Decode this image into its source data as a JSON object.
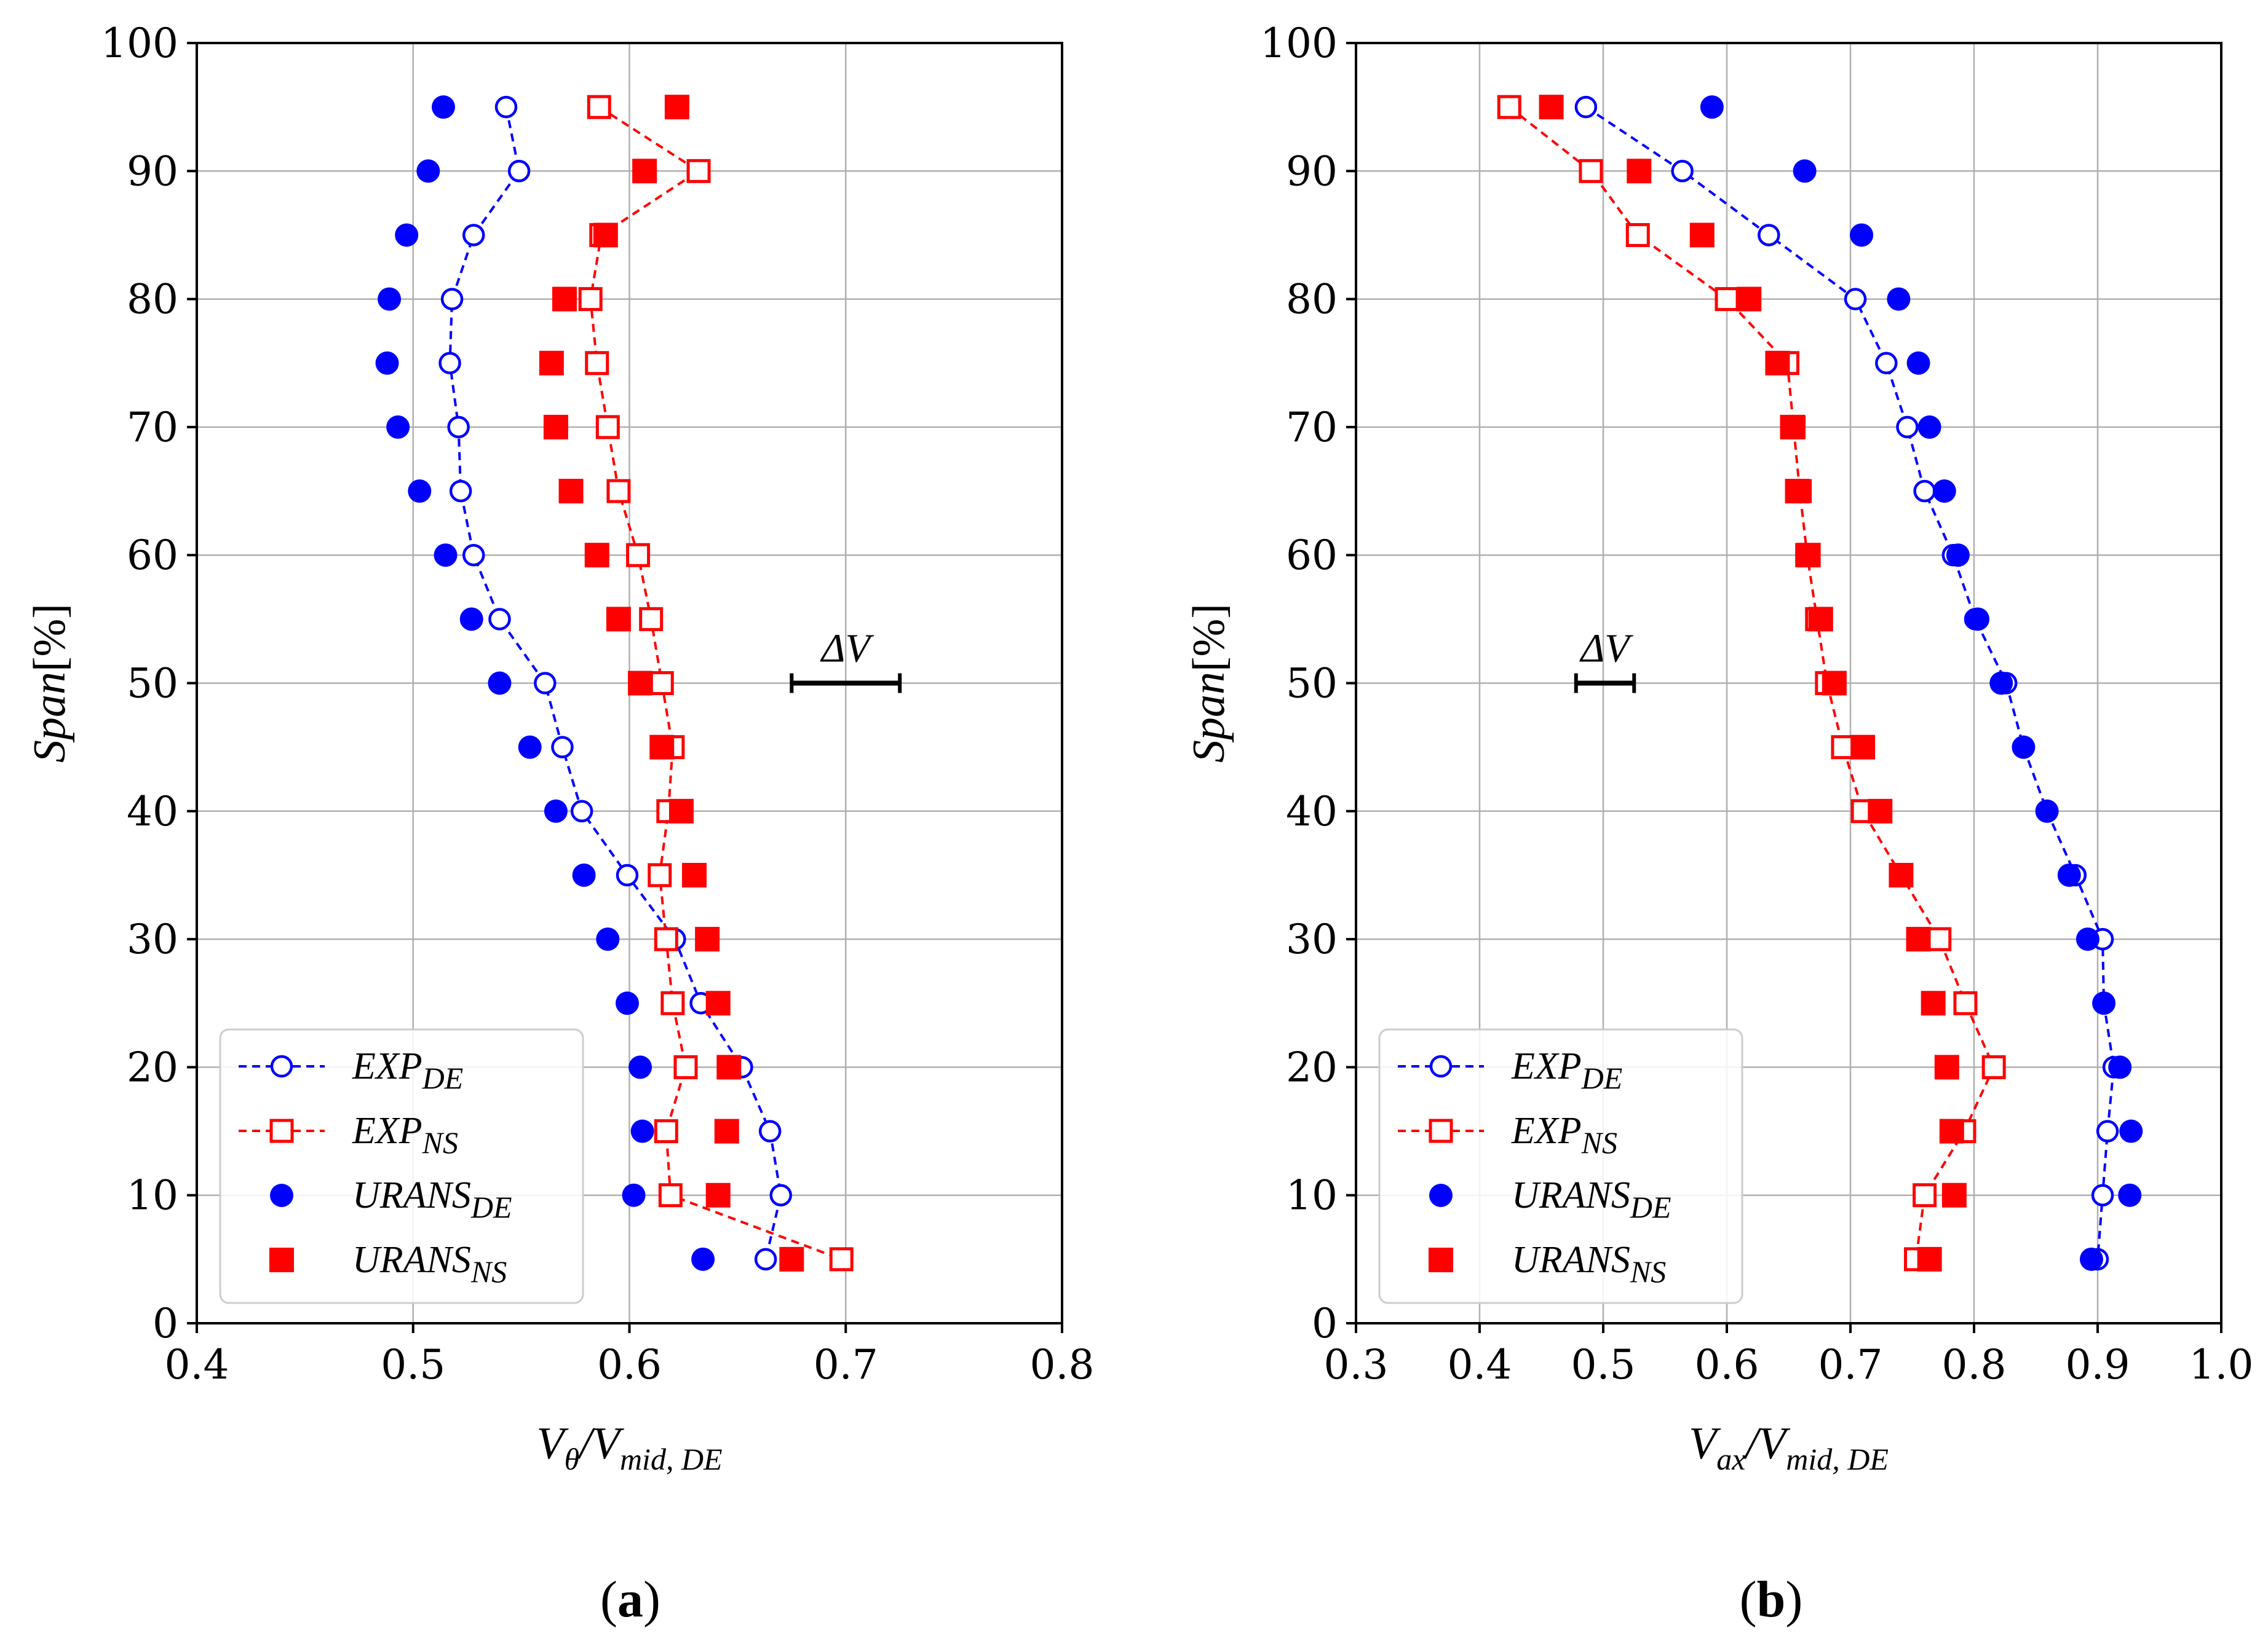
{
  "colors": {
    "blue": "#0000ff",
    "red": "#ff0000",
    "grid": "#b0b0b0"
  },
  "legend_labels": [
    {
      "main": "EXP",
      "sub": "DE"
    },
    {
      "main": "EXP",
      "sub": "NS"
    },
    {
      "main": "URANS",
      "sub": "DE"
    },
    {
      "main": "URANS",
      "sub": "NS"
    }
  ],
  "delta_label": "ΔV",
  "chart_data": [
    {
      "type": "scatter",
      "caption": "(a)",
      "xlabel": {
        "main": "V",
        "sub1": "θ",
        "slash": "/",
        "main2": "V",
        "sub2": "mid, DE"
      },
      "ylabel": {
        "main": "Span",
        "suffix": "[%]"
      },
      "xlim": [
        0.4,
        0.8
      ],
      "ylim": [
        0,
        100
      ],
      "xticks": [
        "0.4",
        "0.5",
        "0.6",
        "0.7",
        "0.8"
      ],
      "yticks": [
        "0",
        "10",
        "20",
        "30",
        "40",
        "50",
        "60",
        "70",
        "80",
        "90",
        "100"
      ],
      "grid": true,
      "legend_position": "lower-left",
      "delta_v": {
        "x_start": 0.675,
        "x_end": 0.725,
        "y": 50
      },
      "series": [
        {
          "key": "exp_de",
          "style": "open-circle-dashed",
          "color": "blue",
          "points": [
            [
              0.543,
              95
            ],
            [
              0.549,
              90
            ],
            [
              0.528,
              85
            ],
            [
              0.518,
              80
            ],
            [
              0.517,
              75
            ],
            [
              0.521,
              70
            ],
            [
              0.522,
              65
            ],
            [
              0.528,
              60
            ],
            [
              0.54,
              55
            ],
            [
              0.561,
              50
            ],
            [
              0.569,
              45
            ],
            [
              0.578,
              40
            ],
            [
              0.599,
              35
            ],
            [
              0.621,
              30
            ],
            [
              0.633,
              25
            ],
            [
              0.652,
              20
            ],
            [
              0.665,
              15
            ],
            [
              0.67,
              10
            ],
            [
              0.663,
              5
            ]
          ]
        },
        {
          "key": "exp_ns",
          "style": "open-square-dashed",
          "color": "red",
          "points": [
            [
              0.586,
              95
            ],
            [
              0.632,
              90
            ],
            [
              0.587,
              85
            ],
            [
              0.582,
              80
            ],
            [
              0.585,
              75
            ],
            [
              0.59,
              70
            ],
            [
              0.595,
              65
            ],
            [
              0.604,
              60
            ],
            [
              0.61,
              55
            ],
            [
              0.615,
              50
            ],
            [
              0.62,
              45
            ],
            [
              0.618,
              40
            ],
            [
              0.614,
              35
            ],
            [
              0.617,
              30
            ],
            [
              0.62,
              25
            ],
            [
              0.626,
              20
            ],
            [
              0.617,
              15
            ],
            [
              0.619,
              10
            ],
            [
              0.698,
              5
            ]
          ]
        },
        {
          "key": "urans_de",
          "style": "filled-circle",
          "color": "blue",
          "points": [
            [
              0.514,
              95
            ],
            [
              0.507,
              90
            ],
            [
              0.497,
              85
            ],
            [
              0.489,
              80
            ],
            [
              0.488,
              75
            ],
            [
              0.493,
              70
            ],
            [
              0.503,
              65
            ],
            [
              0.515,
              60
            ],
            [
              0.527,
              55
            ],
            [
              0.54,
              50
            ],
            [
              0.554,
              45
            ],
            [
              0.566,
              40
            ],
            [
              0.579,
              35
            ],
            [
              0.59,
              30
            ],
            [
              0.599,
              25
            ],
            [
              0.605,
              20
            ],
            [
              0.606,
              15
            ],
            [
              0.602,
              10
            ],
            [
              0.634,
              5
            ]
          ]
        },
        {
          "key": "urans_ns",
          "style": "filled-square",
          "color": "red",
          "points": [
            [
              0.622,
              95
            ],
            [
              0.607,
              90
            ],
            [
              0.589,
              85
            ],
            [
              0.57,
              80
            ],
            [
              0.564,
              75
            ],
            [
              0.566,
              70
            ],
            [
              0.573,
              65
            ],
            [
              0.585,
              60
            ],
            [
              0.595,
              55
            ],
            [
              0.605,
              50
            ],
            [
              0.615,
              45
            ],
            [
              0.624,
              40
            ],
            [
              0.63,
              35
            ],
            [
              0.636,
              30
            ],
            [
              0.641,
              25
            ],
            [
              0.646,
              20
            ],
            [
              0.645,
              15
            ],
            [
              0.641,
              10
            ],
            [
              0.675,
              5
            ]
          ]
        }
      ]
    },
    {
      "type": "scatter",
      "caption": "(b)",
      "xlabel": {
        "main": "V",
        "sub1": "ax",
        "slash": "/",
        "main2": "V",
        "sub2": "mid, DE"
      },
      "ylabel": {
        "main": "Span",
        "suffix": "[%]"
      },
      "xlim": [
        0.3,
        1.0
      ],
      "ylim": [
        0,
        100
      ],
      "xticks": [
        "0.3",
        "0.4",
        "0.5",
        "0.6",
        "0.7",
        "0.8",
        "0.9",
        "1.0"
      ],
      "yticks": [
        "0",
        "10",
        "20",
        "30",
        "40",
        "50",
        "60",
        "70",
        "80",
        "90",
        "100"
      ],
      "grid": true,
      "legend_position": "lower-left",
      "delta_v": {
        "x_start": 0.478,
        "x_end": 0.525,
        "y": 50
      },
      "series": [
        {
          "key": "exp_de",
          "style": "open-circle-dashed",
          "color": "blue",
          "points": [
            [
              0.486,
              95
            ],
            [
              0.564,
              90
            ],
            [
              0.634,
              85
            ],
            [
              0.704,
              80
            ],
            [
              0.729,
              75
            ],
            [
              0.746,
              70
            ],
            [
              0.76,
              65
            ],
            [
              0.783,
              60
            ],
            [
              0.801,
              55
            ],
            [
              0.826,
              50
            ],
            [
              0.84,
              45
            ],
            [
              0.859,
              40
            ],
            [
              0.882,
              35
            ],
            [
              0.904,
              30
            ],
            [
              0.905,
              25
            ],
            [
              0.913,
              20
            ],
            [
              0.908,
              15
            ],
            [
              0.904,
              10
            ],
            [
              0.9,
              5
            ]
          ]
        },
        {
          "key": "exp_ns",
          "style": "open-square-dashed",
          "color": "red",
          "points": [
            [
              0.424,
              95
            ],
            [
              0.49,
              90
            ],
            [
              0.528,
              85
            ],
            [
              0.6,
              80
            ],
            [
              0.649,
              75
            ],
            [
              0.654,
              70
            ],
            [
              0.659,
              65
            ],
            [
              0.665,
              60
            ],
            [
              0.673,
              55
            ],
            [
              0.681,
              50
            ],
            [
              0.694,
              45
            ],
            [
              0.71,
              40
            ],
            [
              0.741,
              35
            ],
            [
              0.772,
              30
            ],
            [
              0.793,
              25
            ],
            [
              0.816,
              20
            ],
            [
              0.792,
              15
            ],
            [
              0.76,
              10
            ],
            [
              0.753,
              5
            ]
          ]
        },
        {
          "key": "urans_de",
          "style": "filled-circle",
          "color": "blue",
          "points": [
            [
              0.588,
              95
            ],
            [
              0.663,
              90
            ],
            [
              0.709,
              85
            ],
            [
              0.739,
              80
            ],
            [
              0.755,
              75
            ],
            [
              0.764,
              70
            ],
            [
              0.776,
              65
            ],
            [
              0.787,
              60
            ],
            [
              0.803,
              55
            ],
            [
              0.822,
              50
            ],
            [
              0.84,
              45
            ],
            [
              0.859,
              40
            ],
            [
              0.877,
              35
            ],
            [
              0.892,
              30
            ],
            [
              0.905,
              25
            ],
            [
              0.918,
              20
            ],
            [
              0.927,
              15
            ],
            [
              0.926,
              10
            ],
            [
              0.895,
              5
            ]
          ]
        },
        {
          "key": "urans_ns",
          "style": "filled-square",
          "color": "red",
          "points": [
            [
              0.458,
              95
            ],
            [
              0.529,
              90
            ],
            [
              0.58,
              85
            ],
            [
              0.618,
              80
            ],
            [
              0.641,
              75
            ],
            [
              0.653,
              70
            ],
            [
              0.657,
              65
            ],
            [
              0.666,
              60
            ],
            [
              0.676,
              55
            ],
            [
              0.687,
              50
            ],
            [
              0.71,
              45
            ],
            [
              0.724,
              40
            ],
            [
              0.741,
              35
            ],
            [
              0.755,
              30
            ],
            [
              0.767,
              25
            ],
            [
              0.778,
              20
            ],
            [
              0.782,
              15
            ],
            [
              0.784,
              10
            ],
            [
              0.764,
              5
            ]
          ]
        }
      ]
    }
  ]
}
